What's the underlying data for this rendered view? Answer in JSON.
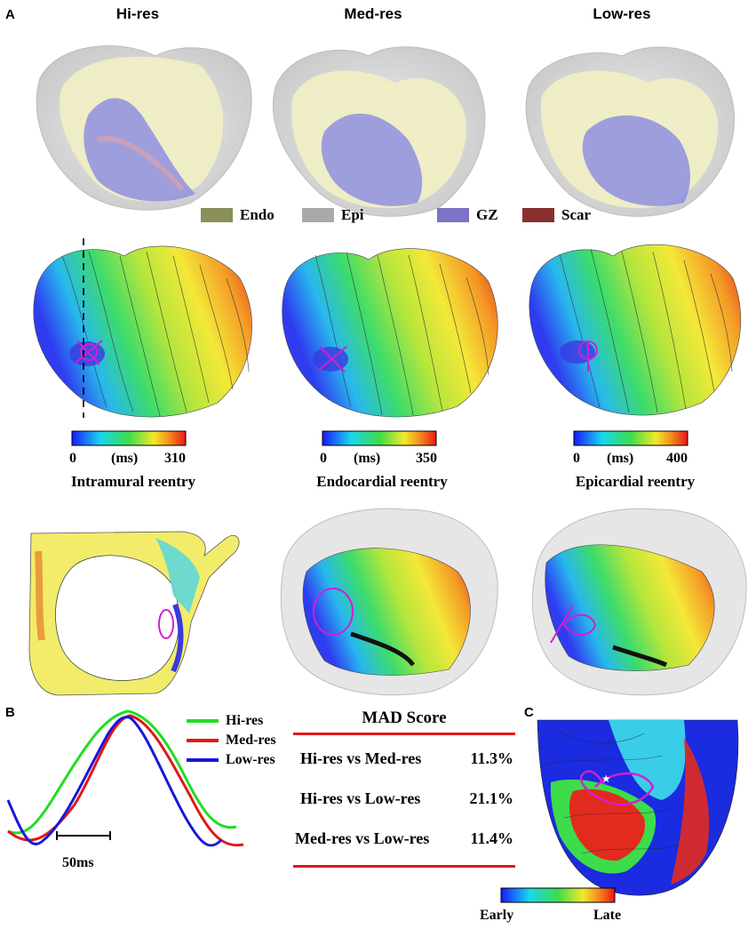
{
  "panel_letters": {
    "a": "A",
    "b": "B",
    "c": "C"
  },
  "columns": {
    "hi": {
      "title": "Hi-res",
      "cb_min": "0",
      "cb_unit": "(ms)",
      "cb_max": "310",
      "caption": "Intramural reentry"
    },
    "med": {
      "title": "Med-res",
      "cb_min": "0",
      "cb_unit": "(ms)",
      "cb_max": "350",
      "caption": "Endocardial reentry"
    },
    "low": {
      "title": "Low-res",
      "cb_min": "0",
      "cb_unit": "(ms)",
      "cb_max": "400",
      "caption": "Epicardial reentry"
    }
  },
  "legend": [
    {
      "label": "Endo",
      "color": "#8a8f5a"
    },
    {
      "label": "Epi",
      "color": "#a9a9a9"
    },
    {
      "label": "GZ",
      "color": "#7b73c4"
    },
    {
      "label": "Scar",
      "color": "#8a2f2f"
    }
  ],
  "traces": {
    "scale_label": "50ms",
    "items": [
      {
        "label": "Hi-res",
        "color": "#22dd22"
      },
      {
        "label": "Med-res",
        "color": "#e01818"
      },
      {
        "label": "Low-res",
        "color": "#1818d8"
      }
    ]
  },
  "mad": {
    "title": "MAD Score",
    "rows": [
      {
        "label": "Hi-res vs Med-res",
        "value": "11.3%"
      },
      {
        "label": "Hi-res vs Low-res",
        "value": "21.1%"
      },
      {
        "label": "Med-res vs Low-res",
        "value": "11.4%"
      }
    ]
  },
  "panel_c": {
    "early": "Early",
    "late": "Late"
  }
}
